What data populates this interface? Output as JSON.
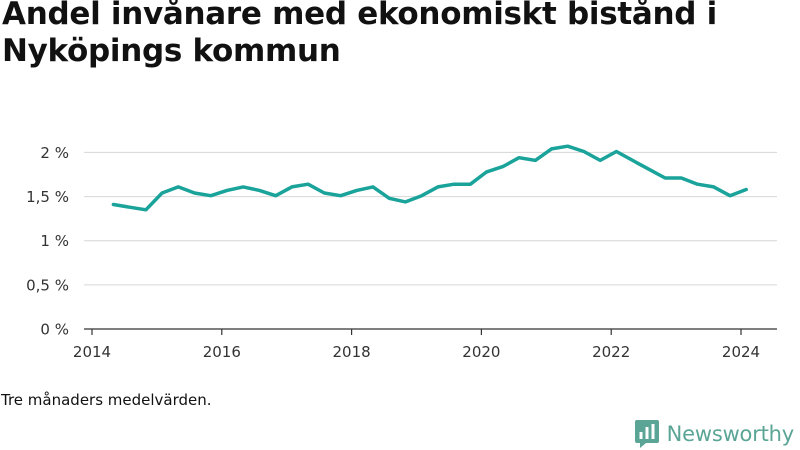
{
  "chart_data": {
    "type": "line",
    "title": "Andel invånare med ekonomiskt bistånd i Nyköpings kommun",
    "xlabel": "",
    "ylabel": "",
    "x_ticks": [
      2014,
      2016,
      2018,
      2020,
      2022,
      2024
    ],
    "x_tick_labels": [
      "2014",
      "2016",
      "2018",
      "2020",
      "2022",
      "2024"
    ],
    "y_ticks": [
      0,
      0.5,
      1,
      1.5,
      2
    ],
    "y_tick_labels": [
      "0 %",
      "0,5 %",
      "1 %",
      "1,5 %",
      "2 %"
    ],
    "xlim": [
      2014,
      2024.6
    ],
    "ylim": [
      0,
      2.1
    ],
    "grid": true,
    "line_color": "#1aa39a",
    "series": [
      {
        "x": [
          2014.33,
          2014.58,
          2014.83,
          2015.08,
          2015.33,
          2015.58,
          2015.83,
          2016.08,
          2016.33,
          2016.58,
          2016.83,
          2017.08,
          2017.33,
          2017.58,
          2017.83,
          2018.08,
          2018.33,
          2018.58,
          2018.83,
          2019.08,
          2019.33,
          2019.58,
          2019.83,
          2020.08,
          2020.33,
          2020.58,
          2020.83,
          2021.08,
          2021.33,
          2021.58,
          2021.83,
          2022.08,
          2022.33,
          2022.58,
          2022.83,
          2023.08,
          2023.33,
          2023.58,
          2023.83,
          2024.08
        ],
        "values": [
          1.41,
          1.38,
          1.35,
          1.54,
          1.61,
          1.54,
          1.51,
          1.57,
          1.61,
          1.57,
          1.51,
          1.61,
          1.64,
          1.54,
          1.51,
          1.57,
          1.61,
          1.48,
          1.44,
          1.51,
          1.61,
          1.64,
          1.64,
          1.78,
          1.84,
          1.94,
          1.91,
          2.04,
          2.07,
          2.01,
          1.91,
          2.01,
          1.91,
          1.81,
          1.71,
          1.71,
          1.64,
          1.61,
          1.51,
          1.58
        ]
      }
    ]
  },
  "note": "Tre månaders medelvärden.",
  "brand": {
    "name": "Newsworthy",
    "icon": "newsworthy-logo-icon",
    "color": "#5aa595"
  }
}
